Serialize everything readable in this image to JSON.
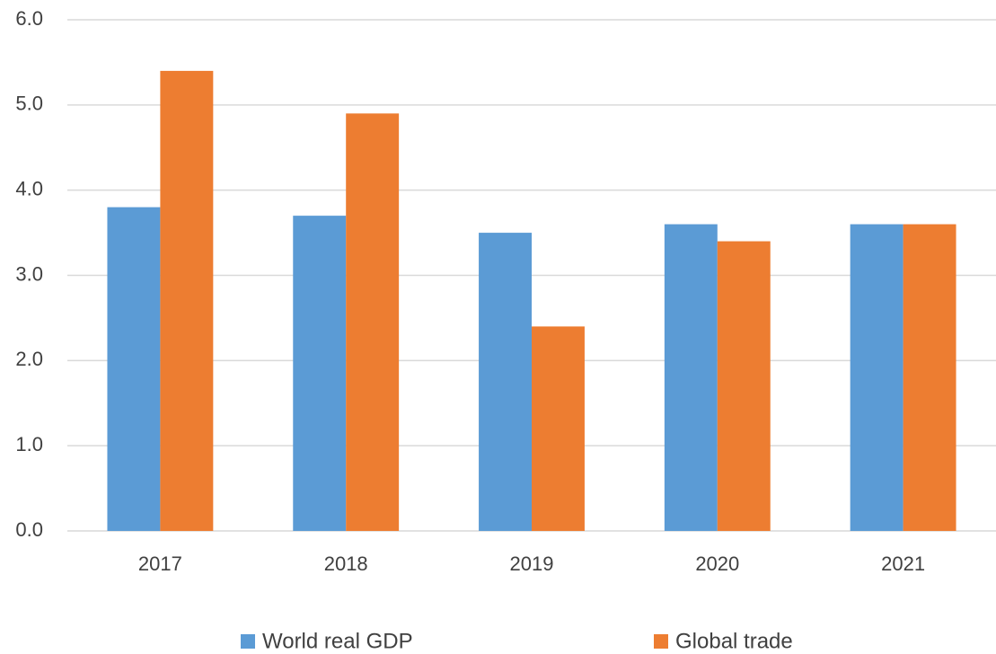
{
  "chart_data": {
    "type": "bar",
    "categories": [
      "2017",
      "2018",
      "2019",
      "2020",
      "2021"
    ],
    "series": [
      {
        "name": "World real GDP",
        "color": "#5b9bd5",
        "values": [
          3.8,
          3.7,
          3.5,
          3.6,
          3.6
        ]
      },
      {
        "name": "Global trade",
        "color": "#ed7d31",
        "values": [
          5.4,
          4.9,
          2.4,
          3.4,
          3.6
        ]
      }
    ],
    "ylim": [
      0,
      6
    ],
    "yticks": [
      {
        "value": 0,
        "label": "0.0"
      },
      {
        "value": 1,
        "label": "1.0"
      },
      {
        "value": 2,
        "label": "2.0"
      },
      {
        "value": 3,
        "label": "3.0"
      },
      {
        "value": 4,
        "label": "4.0"
      },
      {
        "value": 5,
        "label": "5.0"
      },
      {
        "value": 6,
        "label": "6.0"
      }
    ],
    "grid": true,
    "legend": "bottom"
  }
}
